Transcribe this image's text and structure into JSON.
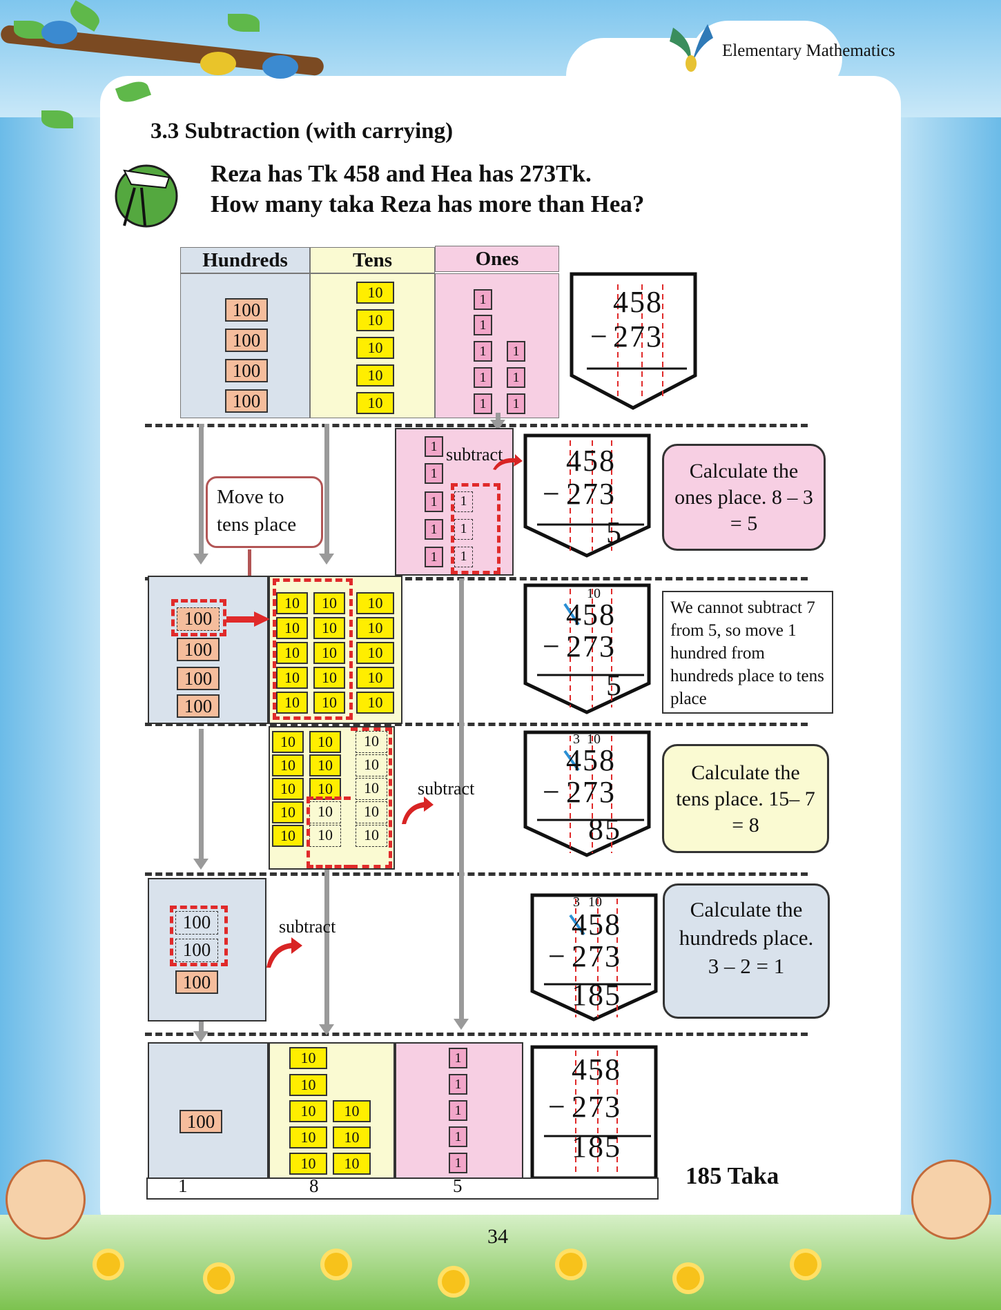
{
  "header": {
    "title": "Elementary Mathematics"
  },
  "section": {
    "title": "3.3 Subtraction (with carrying)"
  },
  "problem": {
    "line1": "Reza has Tk 458 and Hea has 273Tk.",
    "line2": "How many taka Reza has more than Hea?"
  },
  "columns": {
    "hundreds": "Hundreds",
    "tens": "Tens",
    "ones": "Ones"
  },
  "blocks": {
    "hundred": "100",
    "ten": "10",
    "one": "1"
  },
  "calc": {
    "top": "458",
    "bottom": "273",
    "minus": "−",
    "r_ones": "5",
    "r_tens": "85",
    "r_final": "185",
    "carry_ten": "10",
    "carry_three": "3"
  },
  "labels": {
    "subtract": "subtract",
    "move": "Move to tens place"
  },
  "notes": {
    "ones": "Calculate the ones place. 8 – 3 = 5",
    "borrow": "We cannot subtract 7 from 5, so move 1 hundred from hundreds place to tens place",
    "tens": "Calculate the tens place. 15– 7 = 8",
    "hundreds": "Calculate the hundreds place. 3 – 2 = 1"
  },
  "result": {
    "digits": [
      "1",
      "8",
      "5"
    ],
    "answer": "185 Taka"
  },
  "page_number": "34",
  "icons": [
    "bird-icon",
    "pencil-compass-icon",
    "flower-icon",
    "kid-icon"
  ],
  "colors": {
    "hundreds_bg": "#d9e2ec",
    "tens_bg": "#fafad2",
    "ones_bg": "#f7cfe3",
    "hundred_block": "#f5bd9c",
    "ten_block": "#ffee00",
    "one_block": "#f2a6c9",
    "highlight": "#e02a2a"
  }
}
